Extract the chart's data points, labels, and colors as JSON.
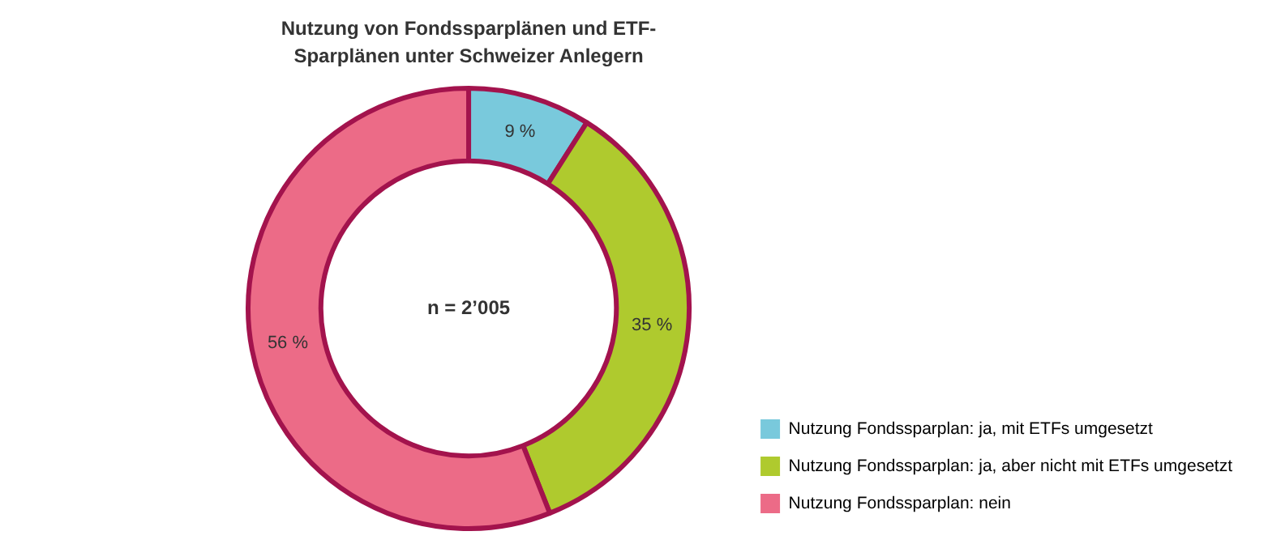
{
  "chart_data": {
    "type": "donut",
    "title": "Nutzung von Fondssparplänen und ETF-Sparplänen unter Schweizer Anlegern",
    "categories": [
      "Nutzung Fondssparplan: ja, mit ETFs umgesetzt",
      "Nutzung Fondssparplan: ja, aber nicht mit ETFs umgesetzt",
      "Nutzung Fondssparplan: nein"
    ],
    "values": [
      9,
      35,
      56
    ],
    "colors": [
      "#79c9dc",
      "#afca2e",
      "#ec6b87"
    ],
    "value_labels": [
      "9 %",
      "35 %",
      "56 %"
    ],
    "annotations": [
      "n = 2’005"
    ],
    "legend": "bottom right"
  }
}
